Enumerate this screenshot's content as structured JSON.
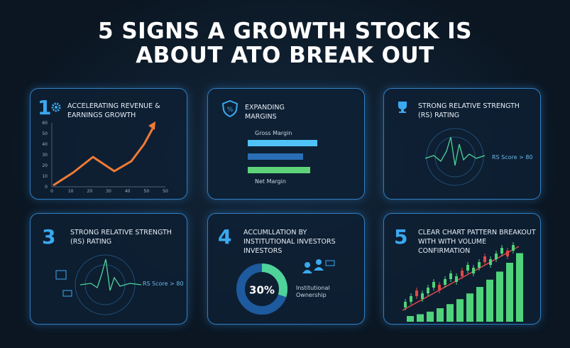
{
  "title_lines": [
    "5 SIGNS A GROWTH STOCK IS",
    "ABOUT ATO BREAK OUT"
  ],
  "panels": [
    {
      "number": "1",
      "title": "ACCELERATING REVENUE & EARNINGS GROWTH",
      "chart": {
        "xticks": [
          "0",
          "10",
          "20",
          "30",
          "40",
          "50",
          "50"
        ],
        "yticks": [
          "0",
          "10",
          "20",
          "30",
          "40",
          "50",
          "60"
        ]
      }
    },
    {
      "title": "EXPANDING MARGINS",
      "labels": [
        "Gross Margin",
        "Net Margin"
      ]
    },
    {
      "title": "STRONG RELATIVE STRENGTH (RS) RATING",
      "annotation": "RS Score > 80"
    },
    {
      "number": "3",
      "title": "STRONG RELATIVE STRENGTH (RS) RATING",
      "annotation": "RS Score > 80"
    },
    {
      "number": "4",
      "title": "ACCUMLLATION BY INSTITUTIONAL INVESTORS INVESTORS",
      "donut": {
        "value": 30,
        "label": "30%"
      },
      "caption": "Institutional Ownership"
    },
    {
      "number": "5",
      "title": "CLEAR CHART PATTERN BREAKOUT WITH WITH VOLUME CONFIRMATION"
    }
  ]
}
